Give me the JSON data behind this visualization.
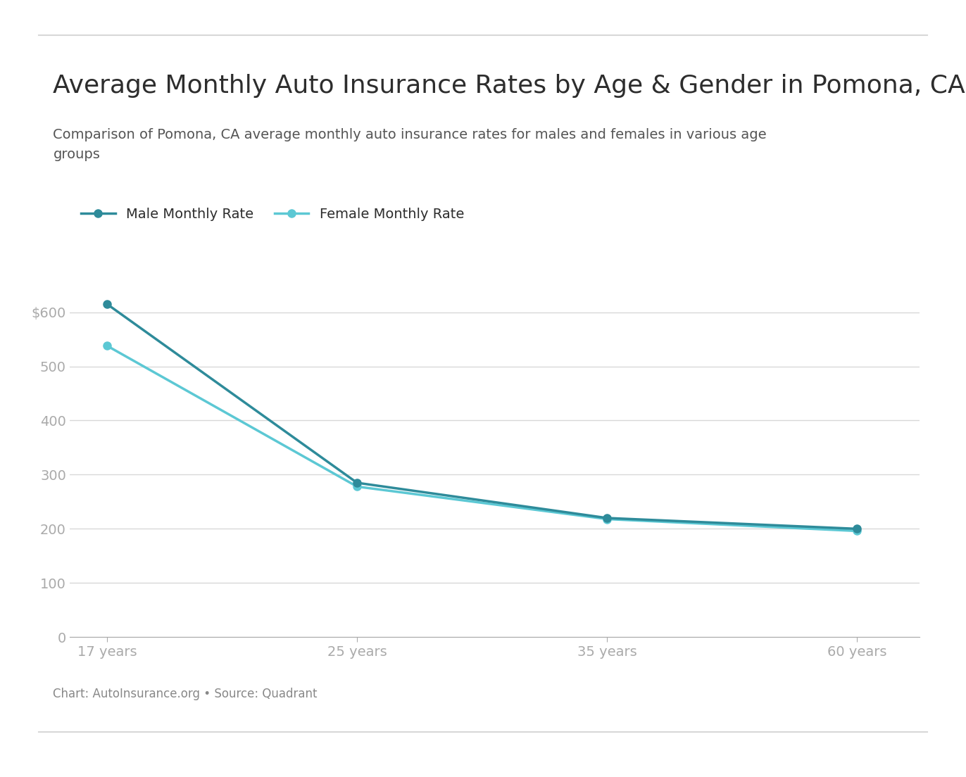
{
  "title": "Average Monthly Auto Insurance Rates by Age & Gender in Pomona, CA",
  "subtitle": "Comparison of Pomona, CA average monthly auto insurance rates for males and females in various age\ngroups",
  "caption": "Chart: AutoInsurance.org • Source: Quadrant",
  "x_labels": [
    "17 years",
    "25 years",
    "35 years",
    "60 years"
  ],
  "x_positions": [
    0,
    1,
    2,
    3
  ],
  "male_values": [
    615,
    285,
    220,
    200
  ],
  "female_values": [
    538,
    278,
    218,
    196
  ],
  "male_color": "#2e8b9a",
  "female_color": "#5cc8d4",
  "male_label": "Male Monthly Rate",
  "female_label": "Female Monthly Rate",
  "y_ticks": [
    0,
    100,
    200,
    300,
    400,
    500,
    600
  ],
  "ylim": [
    0,
    660
  ],
  "bg_color": "#ffffff",
  "grid_color": "#d8d8d8",
  "tick_color": "#aaaaaa",
  "title_color": "#2d2d2d",
  "subtitle_color": "#555555",
  "caption_color": "#888888",
  "title_fontsize": 26,
  "subtitle_fontsize": 14,
  "caption_fontsize": 12,
  "tick_fontsize": 14,
  "legend_fontsize": 14,
  "xlabel_fontsize": 14,
  "marker_size": 8,
  "line_width": 2.5
}
